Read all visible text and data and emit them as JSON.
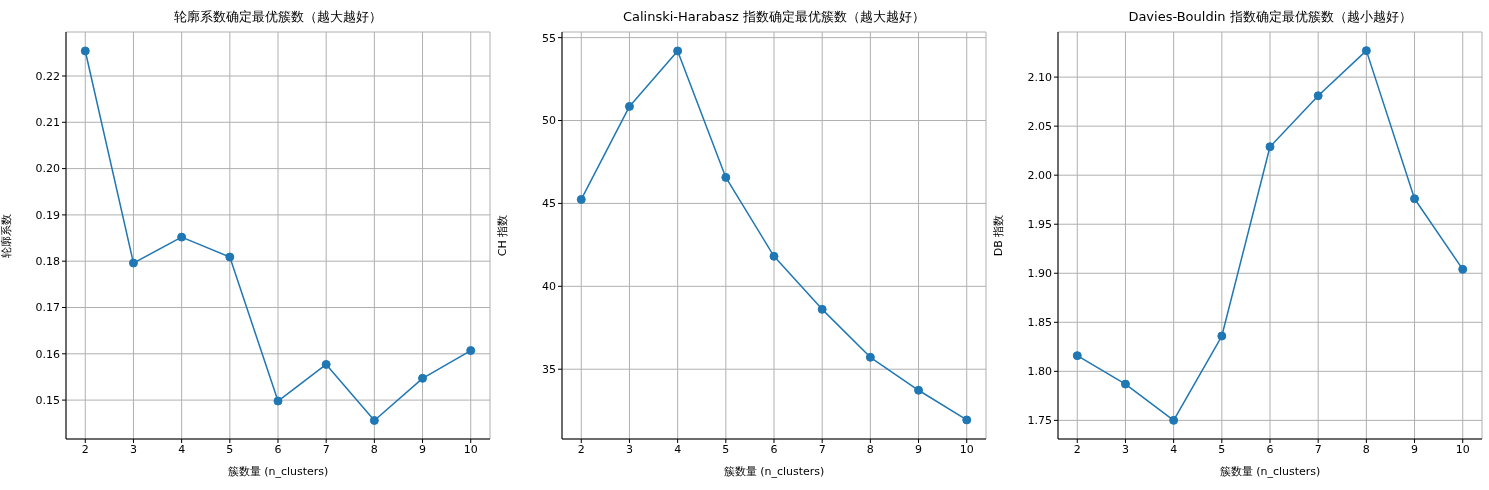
{
  "chart_data": [
    {
      "type": "line",
      "title": "轮廓系数确定最优簇数（越大越好）",
      "xlabel": "簇数量 (n_clusters)",
      "ylabel": "轮廓系数",
      "x": [
        2,
        3,
        4,
        5,
        6,
        7,
        8,
        9,
        10
      ],
      "values": [
        0.2254,
        0.1796,
        0.1852,
        0.1809,
        0.1498,
        0.1577,
        0.1456,
        0.1547,
        0.1607
      ],
      "color": "#1f77b4",
      "xlim": [
        1.6,
        10.4
      ],
      "xticks": [
        2,
        3,
        4,
        5,
        6,
        7,
        8,
        9,
        10
      ],
      "ylim": [
        0.1416,
        0.2295
      ],
      "yticks": [
        0.15,
        0.16,
        0.17,
        0.18,
        0.19,
        {
          "value": 0.2,
          "label": "0.20"
        },
        0.21,
        0.22
      ],
      "grid": true,
      "marker": "circle"
    },
    {
      "type": "line",
      "title": "Calinski-Harabasz 指数确定最优簇数（越大越好）",
      "xlabel": "簇数量 (n_clusters)",
      "ylabel": "CH 指数",
      "x": [
        2,
        3,
        4,
        5,
        6,
        7,
        8,
        9,
        10
      ],
      "values": [
        45.24,
        50.85,
        54.2,
        46.57,
        41.81,
        38.61,
        35.72,
        33.73,
        31.94
      ],
      "color": "#1f77b4",
      "xlim": [
        1.6,
        10.4
      ],
      "xticks": [
        2,
        3,
        4,
        5,
        6,
        7,
        8,
        9,
        10
      ],
      "ylim": [
        30.79,
        55.34
      ],
      "yticks": [
        35,
        40,
        45,
        50,
        55
      ],
      "grid": true,
      "marker": "circle"
    },
    {
      "type": "line",
      "title": "Davies-Bouldin 指数确定最优簇数（越小越好）",
      "xlabel": "簇数量 (n_clusters)",
      "ylabel": "DB 指数",
      "x": [
        2,
        3,
        4,
        5,
        6,
        7,
        8,
        9,
        10
      ],
      "values": [
        1.816,
        1.787,
        1.75,
        1.836,
        2.029,
        2.081,
        2.127,
        1.976,
        1.904
      ],
      "color": "#1f77b4",
      "xlim": [
        1.6,
        10.4
      ],
      "xticks": [
        2,
        3,
        4,
        5,
        6,
        7,
        8,
        9,
        10
      ],
      "ylim": [
        1.731,
        2.146
      ],
      "yticks": [
        1.75,
        {
          "value": 1.8,
          "label": "1.80"
        },
        1.85,
        {
          "value": 1.9,
          "label": "1.90"
        },
        1.95,
        {
          "value": 2.0,
          "label": "2.00"
        },
        2.05,
        {
          "value": 2.1,
          "label": "2.10"
        }
      ],
      "grid": true,
      "marker": "circle"
    }
  ]
}
